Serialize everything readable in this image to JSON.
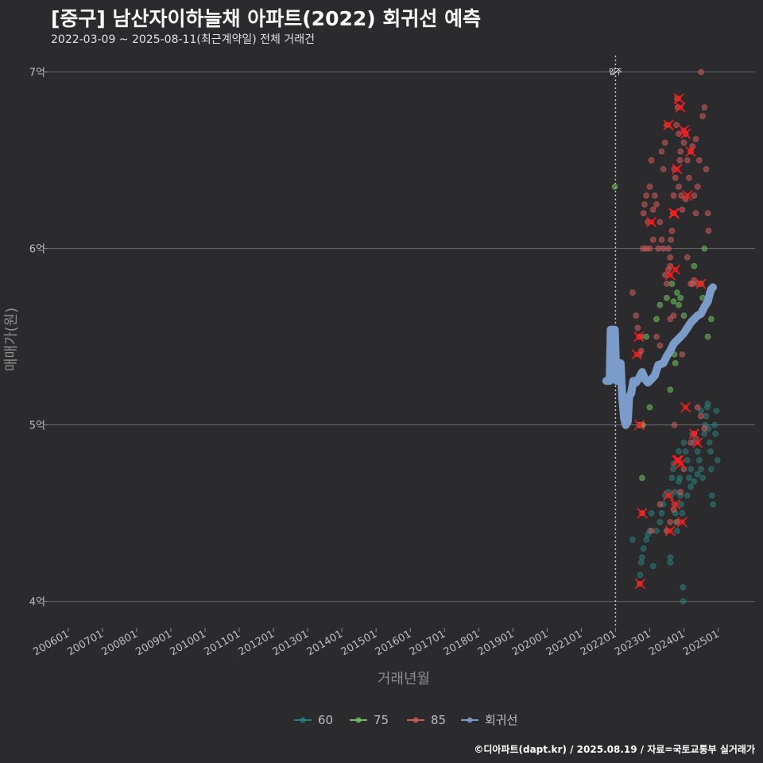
{
  "title": "[중구] 남산자이하늘채 아파트(2022) 회귀선 예측",
  "subtitle": "2022-03-09 ~ 2025-08-11(최근계약일) 전체 거래건",
  "caption": "©디아파트(dapt.kr) / 2025.08.19 / 자료=국토교통부 실거래가",
  "colors": {
    "background": "#2b2b2d",
    "grid": "#6a6a6a",
    "s60": "#2a7d7a",
    "s75": "#6fbf5e",
    "s85": "#cf5b5b",
    "regression": "#7b9cc8",
    "highlight": "#ff1a1a"
  },
  "chart_data": {
    "type": "scatter",
    "title": "[중구] 남산자이하늘채 아파트(2022) 회귀선 예측",
    "xlabel": "거래년월",
    "ylabel": "매매가(원)",
    "ylim": [
      3.85,
      7.12
    ],
    "xlim": [
      2005.4,
      2026.08
    ],
    "y_ticks": [
      {
        "value": 4,
        "label": "4억"
      },
      {
        "value": 5,
        "label": "5억"
      },
      {
        "value": 6,
        "label": "6억"
      },
      {
        "value": 7,
        "label": "7억"
      }
    ],
    "x_ticks": [
      {
        "value": 2006,
        "label": "200601"
      },
      {
        "value": 2007,
        "label": "200701"
      },
      {
        "value": 2008,
        "label": "200801"
      },
      {
        "value": 2009,
        "label": "200901"
      },
      {
        "value": 2010,
        "label": "201001"
      },
      {
        "value": 2011,
        "label": "201101"
      },
      {
        "value": 2012,
        "label": "201201"
      },
      {
        "value": 2013,
        "label": "201301"
      },
      {
        "value": 2014,
        "label": "201401"
      },
      {
        "value": 2015,
        "label": "201501"
      },
      {
        "value": 2016,
        "label": "201601"
      },
      {
        "value": 2017,
        "label": "201701"
      },
      {
        "value": 2018,
        "label": "201801"
      },
      {
        "value": 2019,
        "label": "201901"
      },
      {
        "value": 2020,
        "label": "202001"
      },
      {
        "value": 2021,
        "label": "202101"
      },
      {
        "value": 2022,
        "label": "202201"
      },
      {
        "value": 2023,
        "label": "202301"
      },
      {
        "value": 2024,
        "label": "202401"
      },
      {
        "value": 2025,
        "label": "202501"
      }
    ],
    "vline": {
      "x": 2022.0,
      "label": "입주"
    },
    "legend": [
      {
        "name": "60",
        "color": "#2a7d7a"
      },
      {
        "name": "75",
        "color": "#6fbf5e"
      },
      {
        "name": "85",
        "color": "#cf5b5b"
      },
      {
        "name": "회귀선",
        "color": "#7b9cc8"
      }
    ],
    "regression": [
      [
        2021.73,
        5.25
      ],
      [
        2021.83,
        5.25
      ],
      [
        2021.86,
        5.54
      ],
      [
        2021.93,
        5.54
      ],
      [
        2021.98,
        5.54
      ],
      [
        2022.03,
        5.25
      ],
      [
        2022.1,
        5.3
      ],
      [
        2022.15,
        5.35
      ],
      [
        2022.2,
        5.15
      ],
      [
        2022.25,
        5.04
      ],
      [
        2022.3,
        5.0
      ],
      [
        2022.36,
        5.02
      ],
      [
        2022.4,
        5.16
      ],
      [
        2022.46,
        5.18
      ],
      [
        2022.52,
        5.25
      ],
      [
        2022.6,
        5.24
      ],
      [
        2022.7,
        5.27
      ],
      [
        2022.78,
        5.3
      ],
      [
        2022.86,
        5.26
      ],
      [
        2022.95,
        5.24
      ],
      [
        2023.05,
        5.26
      ],
      [
        2023.15,
        5.28
      ],
      [
        2023.25,
        5.34
      ],
      [
        2023.4,
        5.35
      ],
      [
        2023.5,
        5.39
      ],
      [
        2023.6,
        5.42
      ],
      [
        2023.7,
        5.46
      ],
      [
        2023.8,
        5.48
      ],
      [
        2023.9,
        5.5
      ],
      [
        2024.0,
        5.52
      ],
      [
        2024.1,
        5.55
      ],
      [
        2024.2,
        5.58
      ],
      [
        2024.3,
        5.6
      ],
      [
        2024.4,
        5.62
      ],
      [
        2024.5,
        5.63
      ],
      [
        2024.6,
        5.67
      ],
      [
        2024.7,
        5.7
      ],
      [
        2024.75,
        5.74
      ],
      [
        2024.8,
        5.77
      ],
      [
        2024.85,
        5.78
      ]
    ],
    "series": [
      {
        "name": "60",
        "points": [
          [
            2022.5,
            4.35
          ],
          [
            2022.7,
            4.1
          ],
          [
            2022.72,
            4.15
          ],
          [
            2022.75,
            4.22
          ],
          [
            2022.78,
            4.25
          ],
          [
            2022.82,
            4.3
          ],
          [
            2022.9,
            4.35
          ],
          [
            2022.95,
            4.38
          ],
          [
            2023.0,
            4.4
          ],
          [
            2023.05,
            4.5
          ],
          [
            2023.1,
            4.2
          ],
          [
            2023.2,
            4.4
          ],
          [
            2023.3,
            4.45
          ],
          [
            2023.35,
            4.5
          ],
          [
            2023.4,
            4.55
          ],
          [
            2023.45,
            4.6
          ],
          [
            2023.5,
            4.4
          ],
          [
            2023.55,
            4.62
          ],
          [
            2023.6,
            4.25
          ],
          [
            2023.6,
            4.22
          ],
          [
            2023.62,
            4.6
          ],
          [
            2023.65,
            4.7
          ],
          [
            2023.68,
            4.75
          ],
          [
            2023.7,
            4.78
          ],
          [
            2023.72,
            4.55
          ],
          [
            2023.75,
            4.5
          ],
          [
            2023.78,
            4.45
          ],
          [
            2023.8,
            4.4
          ],
          [
            2023.82,
            4.8
          ],
          [
            2023.85,
            4.85
          ],
          [
            2023.88,
            4.7
          ],
          [
            2023.9,
            4.6
          ],
          [
            2023.92,
            4.55
          ],
          [
            2023.95,
            4.5
          ],
          [
            2023.97,
            4.08
          ],
          [
            2023.98,
            4.0
          ],
          [
            2024.0,
            4.9
          ],
          [
            2024.05,
            4.85
          ],
          [
            2024.1,
            4.8
          ],
          [
            2024.15,
            4.7
          ],
          [
            2024.2,
            4.75
          ],
          [
            2024.25,
            4.95
          ],
          [
            2024.3,
            4.9
          ],
          [
            2024.35,
            4.92
          ],
          [
            2024.4,
            4.85
          ],
          [
            2024.45,
            4.8
          ],
          [
            2024.5,
            4.75
          ],
          [
            2024.55,
            4.7
          ],
          [
            2024.6,
            4.95
          ],
          [
            2024.62,
            5.0
          ],
          [
            2024.65,
            5.05
          ],
          [
            2024.68,
            5.1
          ],
          [
            2024.7,
            5.12
          ],
          [
            2024.72,
            4.98
          ],
          [
            2024.75,
            4.9
          ],
          [
            2024.78,
            4.85
          ],
          [
            2024.8,
            4.75
          ],
          [
            2024.82,
            4.6
          ],
          [
            2024.85,
            4.55
          ],
          [
            2024.9,
            5.0
          ],
          [
            2024.92,
            4.95
          ],
          [
            2024.95,
            5.08
          ],
          [
            2024.98,
            4.8
          ],
          [
            2024.1,
            4.6
          ],
          [
            2024.2,
            4.65
          ],
          [
            2024.3,
            4.68
          ],
          [
            2024.4,
            4.72
          ],
          [
            2023.75,
            4.62
          ],
          [
            2023.85,
            4.68
          ],
          [
            2024.5,
            5.08
          ]
        ]
      },
      {
        "name": "75",
        "points": [
          [
            2021.98,
            6.35
          ],
          [
            2022.7,
            5.0
          ],
          [
            2022.75,
            5.0
          ],
          [
            2022.78,
            4.7
          ],
          [
            2022.8,
            5.0
          ],
          [
            2023.2,
            5.6
          ],
          [
            2023.3,
            5.68
          ],
          [
            2023.5,
            5.72
          ],
          [
            2023.6,
            5.2
          ],
          [
            2023.65,
            5.8
          ],
          [
            2023.7,
            5.7
          ],
          [
            2023.72,
            5.4
          ],
          [
            2023.75,
            5.35
          ],
          [
            2023.8,
            5.75
          ],
          [
            2023.85,
            5.68
          ],
          [
            2024.0,
            5.62
          ],
          [
            2024.3,
            5.9
          ],
          [
            2024.5,
            5.8
          ],
          [
            2024.6,
            6.0
          ],
          [
            2024.7,
            5.5
          ],
          [
            2024.8,
            5.6
          ],
          [
            2023.9,
            5.72
          ],
          [
            2024.55,
            5.72
          ],
          [
            2022.9,
            5.5
          ],
          [
            2023.0,
            5.1
          ],
          [
            2024.1,
            5.55
          ]
        ]
      },
      {
        "name": "85",
        "points": [
          [
            2022.5,
            5.75
          ],
          [
            2022.6,
            5.62
          ],
          [
            2022.65,
            5.55
          ],
          [
            2022.7,
            5.4
          ],
          [
            2022.75,
            5.5
          ],
          [
            2022.8,
            6.0
          ],
          [
            2022.82,
            6.2
          ],
          [
            2022.85,
            6.25
          ],
          [
            2022.9,
            6.3
          ],
          [
            2022.95,
            6.15
          ],
          [
            2023.0,
            6.35
          ],
          [
            2023.05,
            6.5
          ],
          [
            2023.1,
            6.22
          ],
          [
            2023.15,
            6.3
          ],
          [
            2023.2,
            6.25
          ],
          [
            2023.3,
            6.15
          ],
          [
            2023.35,
            6.55
          ],
          [
            2023.4,
            6.45
          ],
          [
            2023.45,
            6.6
          ],
          [
            2023.5,
            6.7
          ],
          [
            2023.55,
            6.0
          ],
          [
            2023.6,
            5.9
          ],
          [
            2023.62,
            6.05
          ],
          [
            2023.65,
            6.1
          ],
          [
            2023.68,
            6.2
          ],
          [
            2023.7,
            6.3
          ],
          [
            2023.72,
            6.45
          ],
          [
            2023.75,
            6.4
          ],
          [
            2023.78,
            6.7
          ],
          [
            2023.8,
            6.85
          ],
          [
            2023.82,
            6.8
          ],
          [
            2023.85,
            6.65
          ],
          [
            2023.88,
            6.5
          ],
          [
            2023.9,
            6.55
          ],
          [
            2023.92,
            6.3
          ],
          [
            2023.95,
            6.22
          ],
          [
            2024.0,
            6.6
          ],
          [
            2024.05,
            6.65
          ],
          [
            2024.1,
            6.5
          ],
          [
            2024.15,
            6.4
          ],
          [
            2024.2,
            6.55
          ],
          [
            2024.25,
            6.58
          ],
          [
            2024.3,
            6.3
          ],
          [
            2024.35,
            6.2
          ],
          [
            2024.4,
            6.35
          ],
          [
            2024.45,
            6.5
          ],
          [
            2024.5,
            7.0
          ],
          [
            2024.55,
            6.75
          ],
          [
            2024.6,
            6.8
          ],
          [
            2024.65,
            6.45
          ],
          [
            2024.7,
            6.2
          ],
          [
            2024.72,
            6.1
          ],
          [
            2023.4,
            6.0
          ],
          [
            2023.45,
            5.85
          ],
          [
            2023.5,
            5.8
          ],
          [
            2023.55,
            5.88
          ],
          [
            2023.6,
            5.95
          ],
          [
            2024.1,
            5.95
          ],
          [
            2024.2,
            5.8
          ],
          [
            2024.3,
            5.82
          ],
          [
            2024.4,
            5.8
          ],
          [
            2023.2,
            5.5
          ],
          [
            2023.3,
            5.45
          ],
          [
            2023.6,
            5.6
          ],
          [
            2023.7,
            5.62
          ],
          [
            2022.9,
            6.0
          ],
          [
            2023.0,
            6.0
          ],
          [
            2023.1,
            6.05
          ],
          [
            2023.25,
            6.0
          ],
          [
            2023.35,
            6.05
          ],
          [
            2022.7,
            5.5
          ],
          [
            2022.75,
            5.42
          ],
          [
            2022.78,
            4.5
          ],
          [
            2023.05,
            4.4
          ],
          [
            2023.3,
            4.55
          ],
          [
            2023.5,
            4.4
          ],
          [
            2023.6,
            4.45
          ],
          [
            2023.7,
            4.52
          ],
          [
            2023.8,
            4.45
          ],
          [
            2023.9,
            4.62
          ],
          [
            2024.0,
            4.75
          ],
          [
            2024.2,
            4.9
          ],
          [
            2024.3,
            4.95
          ],
          [
            2024.4,
            5.1
          ],
          [
            2024.5,
            5.05
          ],
          [
            2024.6,
            4.98
          ],
          [
            2023.95,
            5.4
          ],
          [
            2024.25,
            5.8
          ],
          [
            2022.78,
            5.0
          ],
          [
            2023.72,
            5.0
          ],
          [
            2023.85,
            6.35
          ],
          [
            2024.05,
            6.28
          ],
          [
            2024.35,
            6.62
          ]
        ]
      }
    ],
    "highlights": [
      [
        2022.72,
        4.1
      ],
      [
        2022.7,
        5.0
      ],
      [
        2022.78,
        4.5
      ],
      [
        2022.62,
        5.4
      ],
      [
        2022.68,
        5.5
      ],
      [
        2023.05,
        6.15
      ],
      [
        2023.55,
        6.7
      ],
      [
        2023.7,
        6.2
      ],
      [
        2023.72,
        6.2
      ],
      [
        2023.8,
        6.45
      ],
      [
        2023.85,
        6.85
      ],
      [
        2023.9,
        6.8
      ],
      [
        2024.0,
        6.67
      ],
      [
        2024.05,
        6.65
      ],
      [
        2024.1,
        6.3
      ],
      [
        2024.2,
        6.55
      ],
      [
        2023.6,
        5.85
      ],
      [
        2023.75,
        5.88
      ],
      [
        2023.8,
        4.8
      ],
      [
        2023.55,
        4.6
      ],
      [
        2023.6,
        4.4
      ],
      [
        2023.75,
        4.55
      ],
      [
        2023.85,
        4.8
      ],
      [
        2023.95,
        4.45
      ],
      [
        2024.05,
        5.1
      ],
      [
        2024.3,
        4.95
      ],
      [
        2024.4,
        4.9
      ],
      [
        2024.5,
        5.8
      ],
      [
        2023.9,
        4.78
      ]
    ]
  }
}
